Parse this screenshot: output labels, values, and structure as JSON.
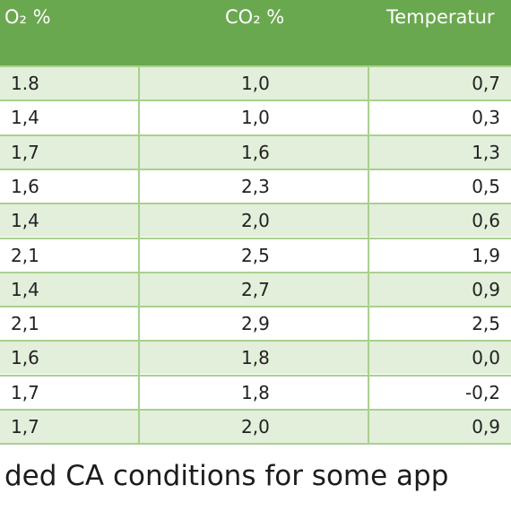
{
  "table": {
    "headers": [
      "O₂ %",
      "CO₂ %",
      "Temperatur"
    ],
    "rows": [
      [
        "1.8",
        "1,0",
        "0,7"
      ],
      [
        "1,4",
        "1,0",
        "0,3"
      ],
      [
        "1,7",
        "1,6",
        "1,3"
      ],
      [
        "1,6",
        "2,3",
        "0,5"
      ],
      [
        "1,4",
        "2,0",
        "0,6"
      ],
      [
        "2,1",
        "2,5",
        "1,9"
      ],
      [
        "1,4",
        "2,7",
        "0,9"
      ],
      [
        "2,1",
        "2,9",
        "2,5"
      ],
      [
        "1,6",
        "1,8",
        "0,0"
      ],
      [
        "1,7",
        "1,8",
        "-0,2"
      ],
      [
        "1,7",
        "2,0",
        "0,9"
      ]
    ]
  },
  "caption": "ded CA conditions for some app",
  "colors": {
    "header_bg": "#6aa84f",
    "row_shade": "#e2efda",
    "grid_line": "#a9d08e"
  }
}
